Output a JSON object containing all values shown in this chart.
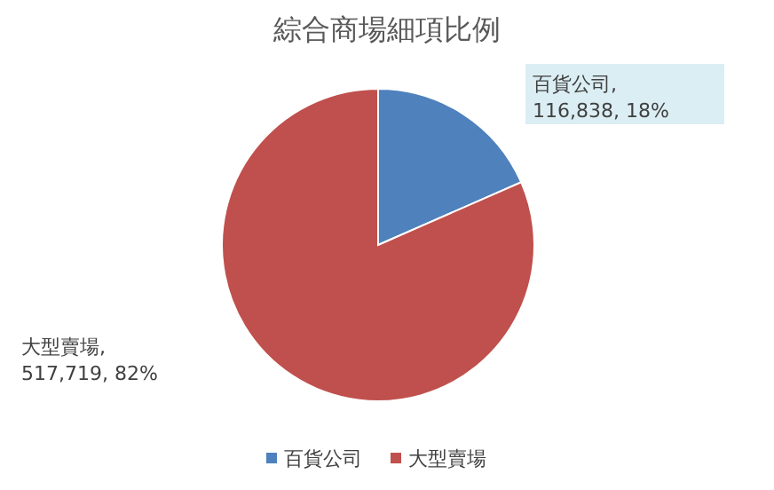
{
  "chart_data": {
    "type": "pie",
    "title": "綜合商場細項比例",
    "categories": [
      "百貨公司",
      "大型賣場"
    ],
    "values": [
      116838,
      517719
    ],
    "colors": [
      "#4f81bd",
      "#c0504d"
    ],
    "value_labels": [
      "百貨公司, 116,838, 18%",
      "大型賣場, 517,719, 82%"
    ],
    "legend": "bottom"
  }
}
